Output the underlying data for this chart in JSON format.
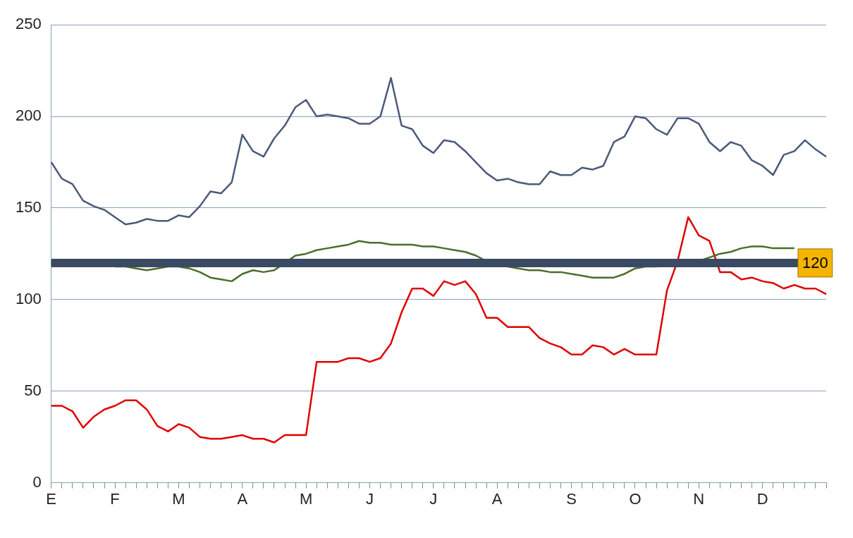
{
  "chart_data": {
    "type": "line",
    "categories": [
      "E",
      null,
      null,
      null,
      null,
      null,
      "F",
      null,
      null,
      null,
      null,
      null,
      "M",
      null,
      null,
      null,
      null,
      null,
      "A",
      null,
      null,
      null,
      null,
      null,
      "M",
      null,
      null,
      null,
      null,
      null,
      "J",
      null,
      null,
      null,
      null,
      null,
      "J",
      null,
      null,
      null,
      null,
      null,
      "A",
      null,
      null,
      null,
      null,
      null,
      null,
      "S",
      null,
      null,
      null,
      null,
      null,
      "O",
      null,
      null,
      null,
      null,
      null,
      "N",
      null,
      null,
      null,
      null,
      null,
      "D",
      null,
      null,
      null,
      null,
      null,
      null
    ],
    "ylim": [
      0,
      250
    ],
    "yticks": [
      0,
      50,
      100,
      150,
      200,
      250
    ],
    "grid": "y",
    "marker": "none",
    "line_style": "solid",
    "ref_lines": [
      {
        "axis": "y",
        "value": 120,
        "label": "120",
        "color": "#3b4a63"
      }
    ],
    "series": [
      {
        "color": "#4a5a78",
        "values": [
          175,
          166,
          163,
          154,
          151,
          149,
          145,
          141,
          142,
          144,
          143,
          143,
          146,
          145,
          151,
          159,
          158,
          164,
          190,
          181,
          178,
          188,
          195,
          205,
          209,
          200,
          201,
          200,
          199,
          196,
          196,
          200,
          221,
          195,
          193,
          184,
          180,
          187,
          186,
          181,
          175,
          169,
          165,
          166,
          164,
          163,
          163,
          170,
          168,
          168,
          172,
          171,
          173,
          186,
          189,
          200,
          199,
          193,
          190,
          199,
          199,
          196,
          186,
          181,
          186,
          184,
          176,
          173,
          168,
          179,
          181,
          187,
          182,
          178
        ]
      },
      {
        "color": "#4a6e2a",
        "values": [
          null,
          null,
          null,
          null,
          null,
          null,
          118,
          118,
          117,
          116,
          117,
          118,
          118,
          117,
          115,
          112,
          111,
          110,
          114,
          116,
          115,
          116,
          120,
          124,
          125,
          127,
          128,
          129,
          130,
          132,
          131,
          131,
          130,
          130,
          130,
          129,
          129,
          128,
          127,
          126,
          124,
          121,
          119,
          118,
          117,
          116,
          116,
          115,
          115,
          114,
          113,
          112,
          112,
          112,
          114,
          117,
          118,
          118,
          119,
          119,
          120,
          121,
          123,
          125,
          126,
          128,
          129,
          129,
          128,
          128,
          128,
          null,
          null,
          null
        ]
      },
      {
        "color": "#e00000",
        "values": [
          42,
          42,
          39,
          30,
          36,
          40,
          42,
          45,
          45,
          40,
          31,
          28,
          32,
          30,
          25,
          24,
          24,
          25,
          26,
          24,
          24,
          22,
          26,
          26,
          26,
          66,
          66,
          66,
          68,
          68,
          66,
          68,
          76,
          93,
          106,
          106,
          102,
          110,
          108,
          110,
          103,
          90,
          90,
          85,
          85,
          85,
          79,
          76,
          74,
          70,
          70,
          75,
          74,
          70,
          73,
          70,
          70,
          70,
          105,
          121,
          145,
          135,
          132,
          115,
          115,
          111,
          112,
          110,
          109,
          106,
          108,
          106,
          106,
          103
        ]
      }
    ]
  }
}
